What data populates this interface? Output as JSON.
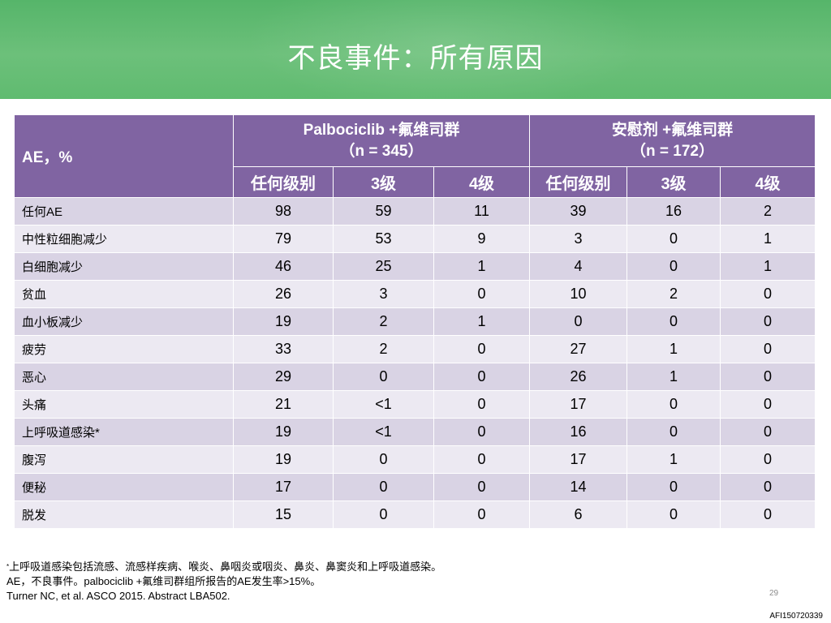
{
  "slide": {
    "title": "不良事件：所有原因",
    "page_number": "29",
    "code": "AFI150720339"
  },
  "table": {
    "ae_header": "AE，%",
    "groups": [
      {
        "name": "Palbociclib +氟维司群",
        "n": "（n = 345）"
      },
      {
        "name": "安慰剂 +氟维司群",
        "n": "（n = 172）"
      }
    ],
    "subheaders": [
      "任何级别",
      "3级",
      "4级",
      "任何级别",
      "3级",
      "4级"
    ],
    "rows": [
      {
        "label": "任何AE",
        "values": [
          "98",
          "59",
          "11",
          "39",
          "16",
          "2"
        ]
      },
      {
        "label": "中性粒细胞减少",
        "values": [
          "79",
          "53",
          "9",
          "3",
          "0",
          "1"
        ]
      },
      {
        "label": "白细胞减少",
        "values": [
          "46",
          "25",
          "1",
          "4",
          "0",
          "1"
        ]
      },
      {
        "label": "贫血",
        "values": [
          "26",
          "3",
          "0",
          "10",
          "2",
          "0"
        ]
      },
      {
        "label": "血小板减少",
        "values": [
          "19",
          "2",
          "1",
          "0",
          "0",
          "0"
        ]
      },
      {
        "label": "疲劳",
        "values": [
          "33",
          "2",
          "0",
          "27",
          "1",
          "0"
        ]
      },
      {
        "label": "恶心",
        "values": [
          "29",
          "0",
          "0",
          "26",
          "1",
          "0"
        ]
      },
      {
        "label": "头痛",
        "values": [
          "21",
          "<1",
          "0",
          "17",
          "0",
          "0"
        ]
      },
      {
        "label": "上呼吸道感染*",
        "values": [
          "19",
          "<1",
          "0",
          "16",
          "0",
          "0"
        ]
      },
      {
        "label": "腹泻",
        "values": [
          "19",
          "0",
          "0",
          "17",
          "1",
          "0"
        ]
      },
      {
        "label": "便秘",
        "values": [
          "17",
          "0",
          "0",
          "14",
          "0",
          "0"
        ]
      },
      {
        "label": "脱发",
        "values": [
          "15",
          "0",
          "0",
          "6",
          "0",
          "0"
        ]
      }
    ]
  },
  "footnotes": {
    "mark": "*",
    "line1": "上呼吸道感染包括流感、流感样疾病、喉炎、鼻咽炎或咽炎、鼻炎、鼻窦炎和上呼吸道感染。",
    "line2": "AE，不良事件。palbociclib +氟维司群组所报告的AE发生率>15%。",
    "line3": "Turner NC, et al. ASCO 2015. Abstract LBA502."
  },
  "colors": {
    "header_green": "#5fba6f",
    "table_header_purple": "#8064a2",
    "row_dark": "#d9d3e4",
    "row_light": "#ece9f2"
  }
}
